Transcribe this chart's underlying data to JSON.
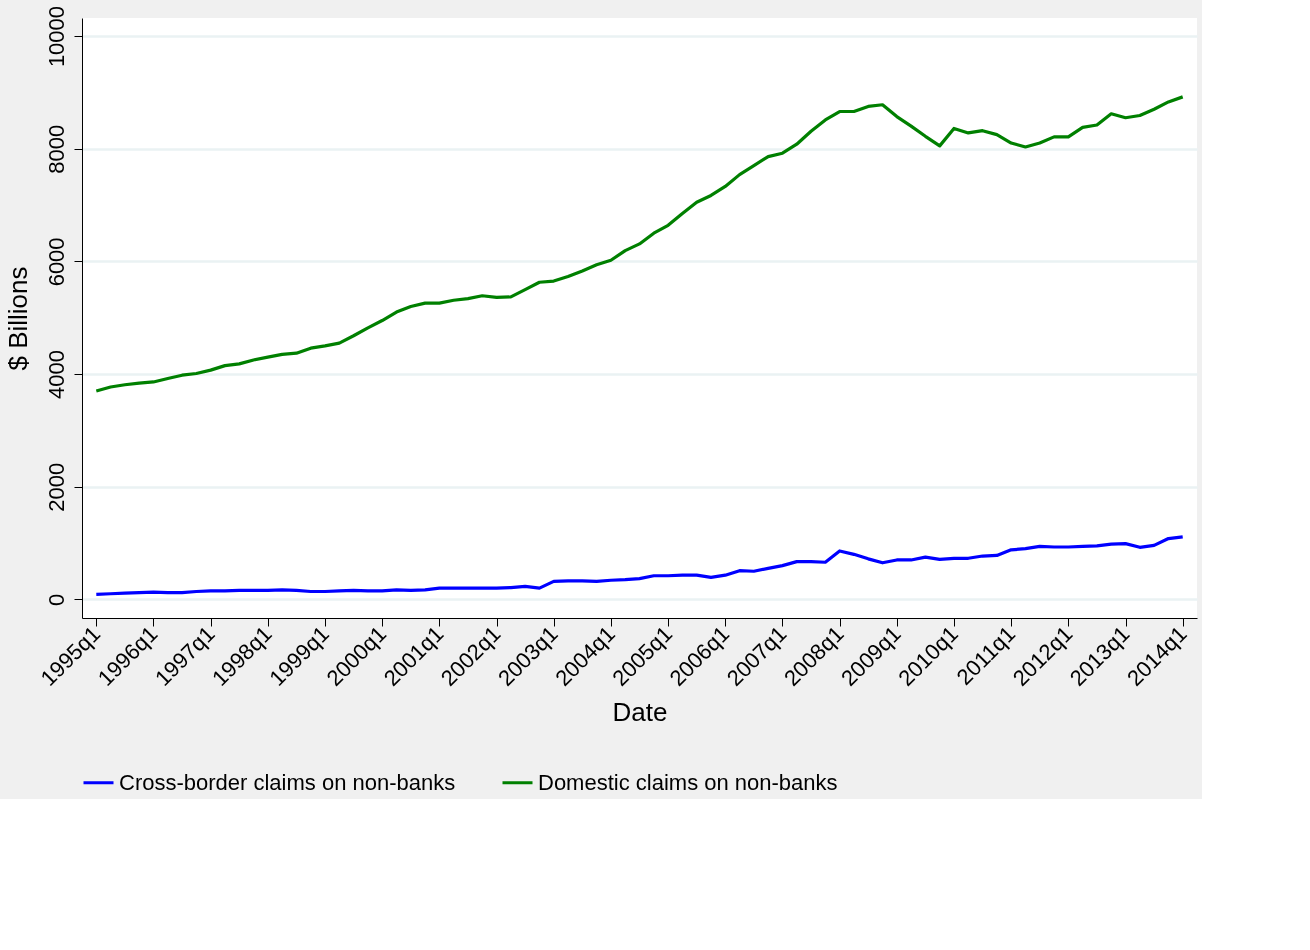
{
  "chart_data": {
    "type": "line",
    "xlabel": "Date",
    "ylabel": "$ Billions",
    "categories": [
      "1995q1",
      null,
      null,
      null,
      "1996q1",
      null,
      null,
      null,
      "1997q1",
      null,
      null,
      null,
      "1998q1",
      null,
      null,
      null,
      "1999q1",
      null,
      null,
      null,
      "2000q1",
      null,
      null,
      null,
      "2001q1",
      null,
      null,
      null,
      "2002q1",
      null,
      null,
      null,
      "2003q1",
      null,
      null,
      null,
      "2004q1",
      null,
      null,
      null,
      "2005q1",
      null,
      null,
      null,
      "2006q1",
      null,
      null,
      null,
      "2007q1",
      null,
      null,
      null,
      "2008q1",
      null,
      null,
      null,
      "2009q1",
      null,
      null,
      null,
      "2010q1",
      null,
      null,
      null,
      "2011q1",
      null,
      null,
      null,
      "2012q1",
      null,
      null,
      null,
      "2013q1",
      null,
      null,
      null,
      "2014q1"
    ],
    "series": [
      {
        "name": "Cross-border claims on non-banks",
        "color": "#0000ff",
        "values": [
          90,
          100,
          110,
          120,
          130,
          120,
          120,
          140,
          150,
          150,
          160,
          160,
          160,
          170,
          160,
          140,
          140,
          150,
          160,
          150,
          150,
          170,
          160,
          170,
          200,
          200,
          200,
          200,
          200,
          210,
          230,
          200,
          320,
          330,
          330,
          320,
          340,
          350,
          370,
          420,
          420,
          430,
          430,
          390,
          430,
          510,
          500,
          550,
          600,
          670,
          670,
          660,
          860,
          800,
          720,
          650,
          700,
          700,
          750,
          710,
          730,
          730,
          770,
          780,
          880,
          900,
          940,
          930,
          930,
          940,
          950,
          980,
          990,
          925,
          960,
          1080,
          1110
        ]
      },
      {
        "name": "Domestic claims on non-banks",
        "color": "#008000",
        "values": [
          3700,
          3770,
          3810,
          3840,
          3860,
          3920,
          3980,
          4010,
          4070,
          4150,
          4180,
          4250,
          4300,
          4350,
          4370,
          4460,
          4500,
          4550,
          4680,
          4820,
          4950,
          5100,
          5200,
          5260,
          5260,
          5310,
          5340,
          5390,
          5360,
          5370,
          5500,
          5630,
          5650,
          5730,
          5830,
          5940,
          6020,
          6190,
          6310,
          6500,
          6640,
          6850,
          7050,
          7170,
          7330,
          7540,
          7700,
          7860,
          7920,
          8080,
          8310,
          8510,
          8660,
          8660,
          8750,
          8780,
          8570,
          8400,
          8220,
          8050,
          8360,
          8280,
          8320,
          8250,
          8100,
          8030,
          8100,
          8210,
          8210,
          8380,
          8420,
          8620,
          8550,
          8590,
          8700,
          8830,
          8920
        ]
      }
    ],
    "ylim": [
      -330,
      10320
    ],
    "yticks": [
      0,
      2000,
      4000,
      6000,
      8000,
      10000
    ],
    "grid": "y",
    "legend": "bottom",
    "line_style": "solid",
    "marker": "none"
  }
}
